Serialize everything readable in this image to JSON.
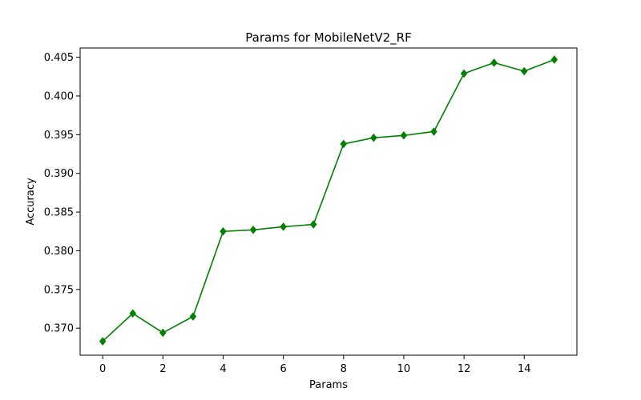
{
  "chart_data": {
    "type": "line",
    "title": "Params for MobileNetV2_RF",
    "xlabel": "Params",
    "ylabel": "Accuracy",
    "xlim": [
      -0.75,
      15.75
    ],
    "ylim": [
      0.3665,
      0.4062
    ],
    "xticks": [
      0,
      2,
      4,
      6,
      8,
      10,
      12,
      14
    ],
    "xtick_labels": [
      "0",
      "2",
      "4",
      "6",
      "8",
      "10",
      "12",
      "14"
    ],
    "yticks": [
      0.37,
      0.375,
      0.38,
      0.385,
      0.39,
      0.395,
      0.4,
      0.405
    ],
    "ytick_labels": [
      "0.370",
      "0.375",
      "0.380",
      "0.385",
      "0.390",
      "0.395",
      "0.400",
      "0.405"
    ],
    "grid": false,
    "series": [
      {
        "color": "#008000",
        "marker": "diamond",
        "x": [
          0,
          1,
          2,
          3,
          4,
          5,
          6,
          7,
          8,
          9,
          10,
          11,
          12,
          13,
          14,
          15
        ],
        "values": [
          0.3683,
          0.3719,
          0.3694,
          0.3715,
          0.3825,
          0.3827,
          0.3831,
          0.3834,
          0.3938,
          0.3946,
          0.3949,
          0.3954,
          0.4029,
          0.4043,
          0.4032,
          0.4047
        ]
      }
    ]
  }
}
